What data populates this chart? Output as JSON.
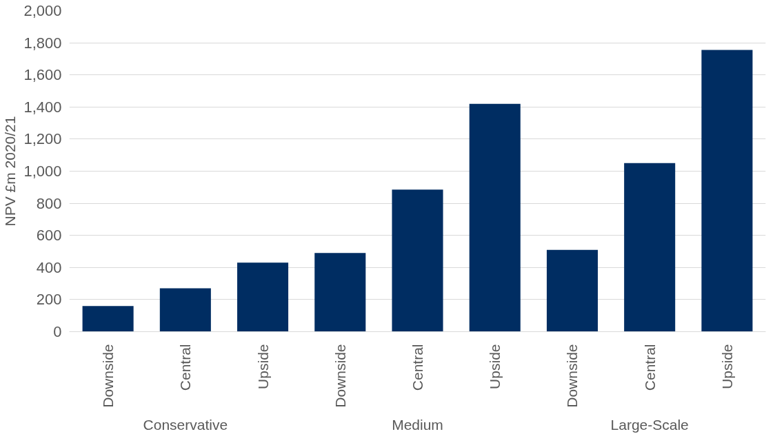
{
  "chart_data": {
    "type": "bar",
    "ylabel": "NPV £m 2020/21",
    "categories": [
      "Downside",
      "Central",
      "Upside",
      "Downside",
      "Central",
      "Upside",
      "Downside",
      "Central",
      "Upside"
    ],
    "annotations": [
      "Conservative",
      "Medium",
      "Large-Scale"
    ],
    "values": [
      160,
      270,
      430,
      490,
      885,
      1420,
      510,
      1050,
      1755
    ],
    "color": "#002d62",
    "ylim": [
      0,
      2000
    ],
    "yticks": [
      0,
      200,
      400,
      600,
      800,
      {
        "value": 1000,
        "label": "1,000"
      },
      {
        "value": 1200,
        "label": "1,200"
      },
      {
        "value": 1400,
        "label": "1,400"
      },
      {
        "value": 1600,
        "label": "1,600"
      },
      {
        "value": 1800,
        "label": "1,800"
      },
      {
        "value": 2000,
        "label": "2,000"
      }
    ],
    "grid": "y"
  }
}
